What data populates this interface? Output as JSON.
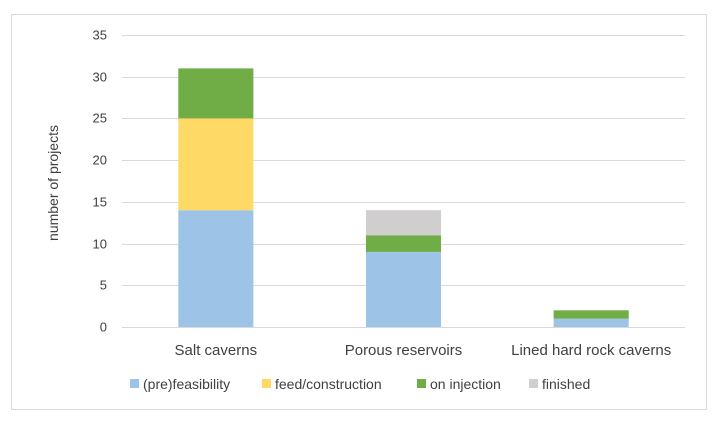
{
  "chart_data": {
    "type": "bar",
    "stacked": true,
    "categories": [
      "Salt caverns",
      "Porous reservoirs",
      "Lined hard rock caverns"
    ],
    "series": [
      {
        "name": "(pre)feasibility",
        "values": [
          14,
          9,
          1
        ],
        "color": "#9DC3E6"
      },
      {
        "name": "feed/construction",
        "values": [
          11,
          0,
          0
        ],
        "color": "#FFD966"
      },
      {
        "name": "on injection",
        "values": [
          6,
          2,
          1
        ],
        "color": "#70AD47"
      },
      {
        "name": "finished",
        "values": [
          0,
          3,
          0
        ],
        "color": "#D0CECE"
      }
    ],
    "title": "",
    "xlabel": "",
    "ylabel": "number of projects",
    "ylim": [
      0,
      35
    ],
    "yticks": [
      "0",
      "5",
      "10",
      "15",
      "20",
      "25",
      "30",
      "35"
    ],
    "grid": true,
    "legend_position": "bottom"
  }
}
